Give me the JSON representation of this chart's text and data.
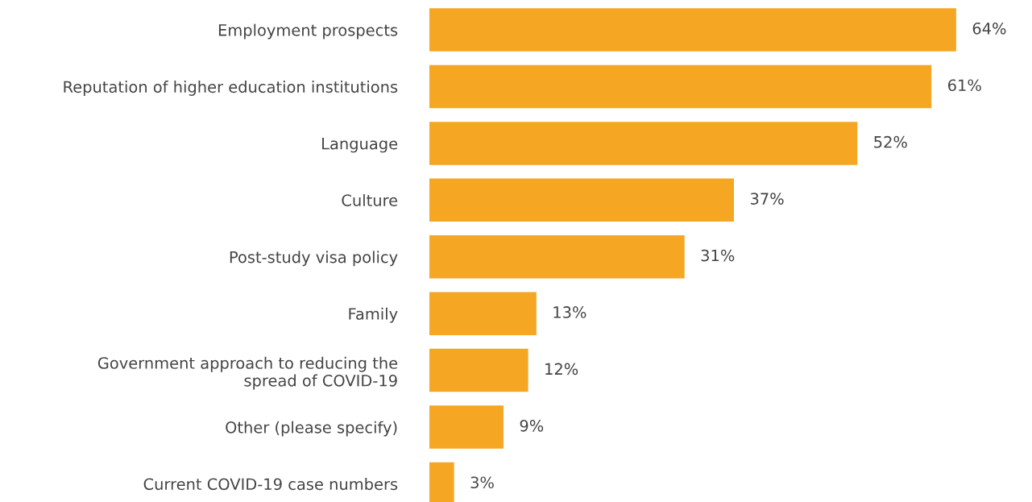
{
  "chart_data": {
    "type": "bar",
    "orientation": "horizontal",
    "categories": [
      "Employment prospects",
      "Reputation of higher education institutions",
      "Language",
      "Culture",
      "Post-study visa policy",
      "Family",
      "Government approach to reducing the\nspread of COVID-19",
      "Other (please specify)",
      "Current COVID-19 case numbers"
    ],
    "values": [
      64,
      61,
      52,
      37,
      31,
      13,
      12,
      9,
      3
    ],
    "value_labels": [
      "64%",
      "61%",
      "52%",
      "37%",
      "31%",
      "13%",
      "12%",
      "9%",
      "3%"
    ],
    "color": "#f5a623",
    "grid": false,
    "legend": false
  }
}
